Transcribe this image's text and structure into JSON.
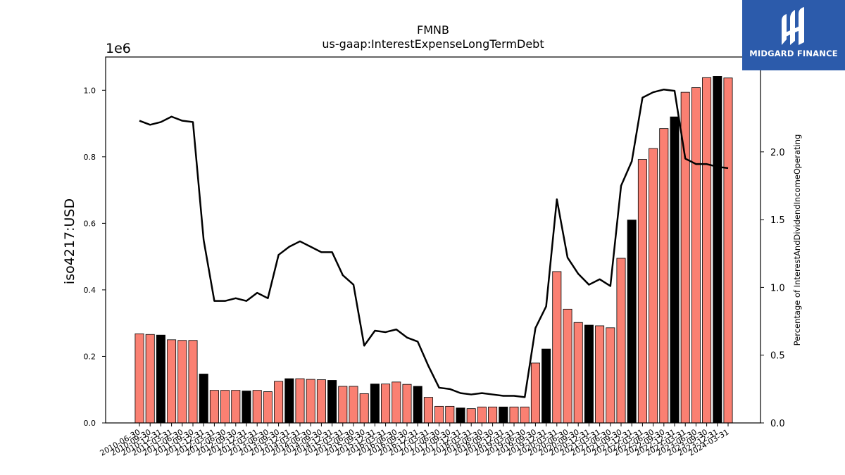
{
  "chart_data": {
    "type": "bar+line",
    "title": "FMNB",
    "subtitle": "us-gaap:InterestExpenseLongTermDebt",
    "ylabel": "iso4217:USD",
    "y_offset_label": "1e6",
    "y2label": "Percentage of InterestAndDividendIncomeOperating",
    "ylim": [
      0,
      1100000
    ],
    "y2lim": [
      0,
      2.7
    ],
    "yticks": [
      "0.0",
      "0.2",
      "0.4",
      "0.6",
      "0.8",
      "1.0"
    ],
    "y2ticks": [
      "0.0",
      "0.5",
      "1.0",
      "1.5",
      "2.0"
    ],
    "grid": false,
    "categories": [
      "2010-06-30",
      "2010-09-30",
      "2010-12-31",
      "2011-03-31",
      "2011-06-30",
      "2011-09-30",
      "2011-12-31",
      "2012-03-31",
      "2012-06-30",
      "2012-09-30",
      "2012-12-31",
      "2013-03-31",
      "2013-06-30",
      "2013-09-30",
      "2013-12-31",
      "2014-03-31",
      "2014-06-30",
      "2014-09-30",
      "2014-12-31",
      "2015-03-31",
      "2015-06-30",
      "2015-09-30",
      "2015-12-31",
      "2016-03-31",
      "2016-06-30",
      "2016-09-30",
      "2016-12-31",
      "2017-03-31",
      "2017-06-30",
      "2017-09-30",
      "2017-12-31",
      "2018-03-31",
      "2018-06-30",
      "2018-09-30",
      "2018-12-31",
      "2019-03-31",
      "2019-06-30",
      "2019-09-30",
      "2019-12-31",
      "2020-03-31",
      "2020-06-30",
      "2020-09-30",
      "2020-12-31",
      "2021-03-31",
      "2021-06-30",
      "2021-09-30",
      "2021-12-31",
      "2022-03-31",
      "2022-06-30",
      "2022-09-30",
      "2022-12-31",
      "2023-03-31",
      "2023-06-30",
      "2023-09-30",
      "2023-12-31",
      "2024-03-31"
    ],
    "series": [
      {
        "kind": "bar",
        "values": [
          268000,
          266000,
          264000,
          250000,
          248000,
          248000,
          147000,
          98000,
          98000,
          98000,
          96000,
          98000,
          94000,
          125000,
          133000,
          133000,
          131000,
          130000,
          128000,
          110000,
          110000,
          88000,
          117000,
          117000,
          123000,
          116000,
          110000,
          77000,
          50000,
          50000,
          45000,
          43000,
          48000,
          48000,
          48000,
          48000,
          48000,
          180000,
          222000,
          455000,
          342000,
          302000,
          294000,
          292000,
          286000,
          495000,
          610000,
          792000,
          825000,
          885000,
          920000,
          994000,
          1008000,
          1038000,
          1042000,
          1037000
        ],
        "colors": [
          "salmon",
          "salmon",
          "black",
          "salmon",
          "salmon",
          "salmon",
          "black",
          "salmon",
          "salmon",
          "salmon",
          "black",
          "salmon",
          "salmon",
          "salmon",
          "black",
          "salmon",
          "salmon",
          "salmon",
          "black",
          "salmon",
          "salmon",
          "salmon",
          "black",
          "salmon",
          "salmon",
          "salmon",
          "black",
          "salmon",
          "salmon",
          "salmon",
          "black",
          "salmon",
          "salmon",
          "salmon",
          "black",
          "salmon",
          "salmon",
          "salmon",
          "black",
          "salmon",
          "salmon",
          "salmon",
          "black",
          "salmon",
          "salmon",
          "salmon",
          "black",
          "salmon",
          "salmon",
          "salmon",
          "black",
          "salmon",
          "salmon",
          "salmon",
          "black",
          "salmon"
        ]
      },
      {
        "kind": "line",
        "axis": "right",
        "values": [
          2.23,
          2.2,
          2.22,
          2.26,
          2.23,
          2.22,
          1.35,
          0.9,
          0.9,
          0.92,
          0.9,
          0.96,
          0.92,
          1.24,
          1.3,
          1.34,
          1.3,
          1.26,
          1.26,
          1.09,
          1.02,
          0.57,
          0.68,
          0.67,
          0.69,
          0.63,
          0.6,
          0.42,
          0.26,
          0.25,
          0.22,
          0.21,
          0.22,
          0.21,
          0.2,
          0.2,
          0.19,
          0.7,
          0.86,
          1.65,
          1.22,
          1.1,
          1.02,
          1.06,
          1.01,
          1.75,
          1.93,
          2.4,
          2.44,
          2.46,
          2.45,
          1.95,
          1.91,
          1.91,
          1.89,
          1.88
        ]
      }
    ],
    "colors": {
      "bar_main": "#fa8072",
      "bar_highlight": "#000000",
      "line": "#000000"
    }
  },
  "logo": {
    "text": "MIDGARD FINANCE",
    "background": "#2c5bab"
  }
}
